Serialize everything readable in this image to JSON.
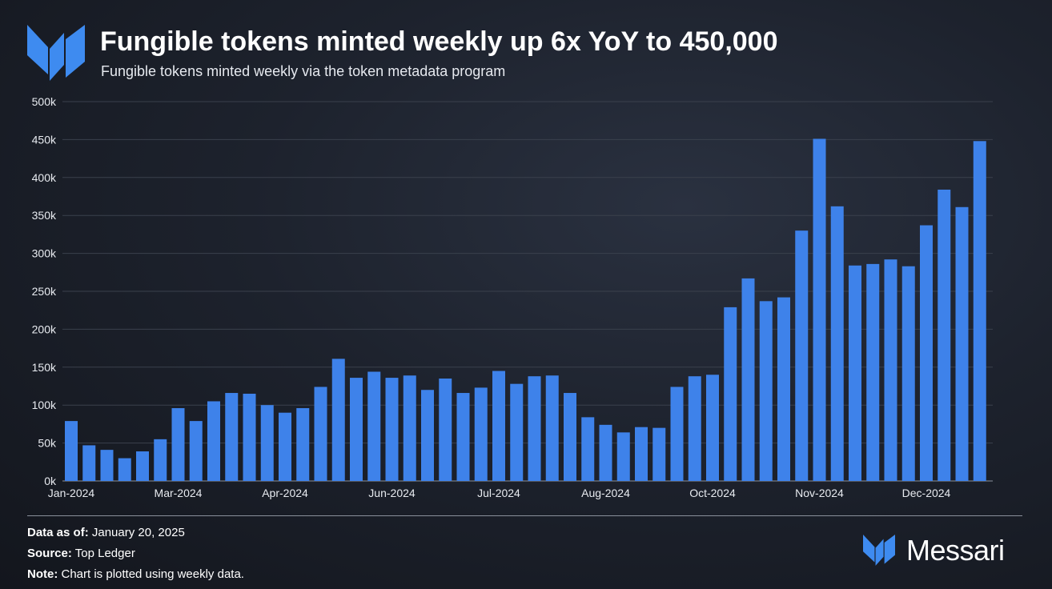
{
  "header": {
    "title": "Fungible tokens minted weekly up 6x YoY to 450,000",
    "subtitle": "Fungible tokens minted weekly via the token metadata program"
  },
  "colors": {
    "bar": "#3e82ea",
    "brand": "#3e8bf0",
    "gridline": "#3a404c",
    "baseline": "#8a909b"
  },
  "chart_data": {
    "type": "bar",
    "title": "Fungible tokens minted weekly up 6x YoY to 450,000",
    "subtitle": "Fungible tokens minted weekly via the token metadata program",
    "xlabel": "",
    "ylabel": "",
    "ylim": [
      0,
      500000
    ],
    "grid": true,
    "legend": "none",
    "y_ticks": [
      {
        "value": 0,
        "label": "0k"
      },
      {
        "value": 50000,
        "label": "50k"
      },
      {
        "value": 100000,
        "label": "100k"
      },
      {
        "value": 150000,
        "label": "150k"
      },
      {
        "value": 200000,
        "label": "200k"
      },
      {
        "value": 250000,
        "label": "250k"
      },
      {
        "value": 300000,
        "label": "300k"
      },
      {
        "value": 350000,
        "label": "350k"
      },
      {
        "value": 400000,
        "label": "400k"
      },
      {
        "value": 450000,
        "label": "450k"
      },
      {
        "value": 500000,
        "label": "500k"
      }
    ],
    "x_ticks": [
      {
        "index": 0,
        "label": "Jan-2024"
      },
      {
        "index": 6,
        "label": "Mar-2024"
      },
      {
        "index": 12,
        "label": "Apr-2024"
      },
      {
        "index": 18,
        "label": "Jun-2024"
      },
      {
        "index": 24,
        "label": "Jul-2024"
      },
      {
        "index": 30,
        "label": "Aug-2024"
      },
      {
        "index": 36,
        "label": "Oct-2024"
      },
      {
        "index": 42,
        "label": "Nov-2024"
      },
      {
        "index": 48,
        "label": "Dec-2024"
      }
    ],
    "values": [
      79000,
      47000,
      41000,
      30000,
      39000,
      55000,
      96000,
      79000,
      105000,
      116000,
      115000,
      100000,
      90000,
      96000,
      124000,
      161000,
      136000,
      144000,
      136000,
      139000,
      120000,
      135000,
      116000,
      123000,
      145000,
      128000,
      138000,
      139000,
      116000,
      84000,
      74000,
      64000,
      71000,
      70000,
      124000,
      138000,
      140000,
      229000,
      267000,
      237000,
      242000,
      330000,
      451000,
      362000,
      284000,
      286000,
      292000,
      283000,
      337000,
      384000,
      361000,
      448000
    ]
  },
  "footer": {
    "data_as_of_label": "Data as of:",
    "data_as_of_value": "January 20, 2025",
    "source_label": "Source:",
    "source_value": "Top Ledger",
    "note_label": "Note:",
    "note_value": "Chart is plotted using weekly data."
  },
  "brand": {
    "name": "Messari",
    "icon": "messari-logo-icon"
  }
}
